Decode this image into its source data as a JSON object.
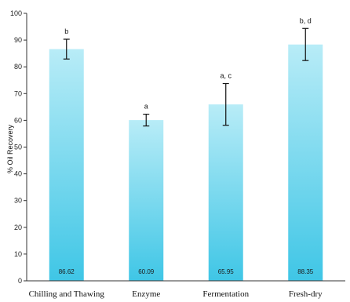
{
  "chart_data": {
    "type": "bar",
    "categories": [
      "Chilling and Thawing",
      "Enzyme",
      "Fermentation",
      "Fresh-dry"
    ],
    "values": [
      86.62,
      60.09,
      65.95,
      88.35
    ],
    "value_labels": [
      "86.62",
      "60.09",
      "65.95",
      "88.35"
    ],
    "error": [
      3.7,
      2.2,
      7.8,
      6.0
    ],
    "significance": [
      "b",
      "a",
      "a, c",
      "b, d"
    ],
    "ylabel": "% Oil Recovery",
    "xlabel": "",
    "ylim": [
      0,
      100
    ],
    "yticks": [
      0,
      10,
      20,
      30,
      40,
      50,
      60,
      70,
      80,
      90,
      100
    ],
    "grid": false,
    "colors": {
      "bar_top": "#b8ecf7",
      "bar_bottom": "#3fc6e6",
      "axis": "#333333",
      "text": "#111111"
    }
  }
}
